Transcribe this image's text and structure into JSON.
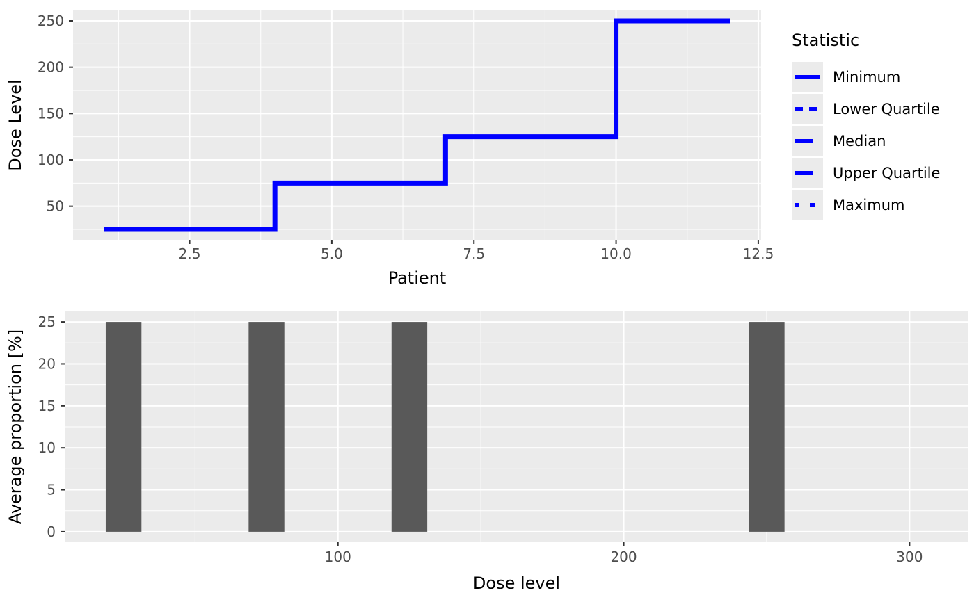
{
  "figure": {
    "background": "#FFFFFF",
    "panel_background": "#EBEBEB",
    "grid_color": "#FFFFFF",
    "tick_color": "#333333",
    "tick_label_color": "#4D4D4D",
    "axis_title_color": "#000000"
  },
  "chart_data": [
    {
      "type": "line",
      "subtype": "step",
      "title": "",
      "xlabel": "Patient",
      "ylabel": "Dose Level",
      "line_color": "#0000FF",
      "line_width": 7,
      "step_points": [
        {
          "x": 1,
          "y": 25
        },
        {
          "x": 4,
          "y": 25
        },
        {
          "x": 4,
          "y": 75
        },
        {
          "x": 7,
          "y": 75
        },
        {
          "x": 7,
          "y": 125
        },
        {
          "x": 10,
          "y": 125
        },
        {
          "x": 10,
          "y": 250
        },
        {
          "x": 12,
          "y": 250
        }
      ],
      "series_note": "Minimum, Lower Quartile, Median, Upper Quartile and Maximum all coincide on the same step curve",
      "xlim": [
        0.45,
        12.55
      ],
      "ylim": [
        13.75,
        261.25
      ],
      "x_ticks": [
        {
          "value": 2.5,
          "label": "2.5"
        },
        {
          "value": 5.0,
          "label": "5.0"
        },
        {
          "value": 7.5,
          "label": "7.5"
        },
        {
          "value": 10.0,
          "label": "10.0"
        },
        {
          "value": 12.5,
          "label": "12.5"
        }
      ],
      "x_minor": [
        1.25,
        3.75,
        6.25,
        8.75,
        11.25
      ],
      "y_ticks": [
        {
          "value": 50,
          "label": "50"
        },
        {
          "value": 100,
          "label": "100"
        },
        {
          "value": 150,
          "label": "150"
        },
        {
          "value": 200,
          "label": "200"
        },
        {
          "value": 250,
          "label": "250"
        }
      ],
      "y_minor": [
        25,
        75,
        125,
        175,
        225
      ],
      "grid": true,
      "legend": {
        "position": "right",
        "title": "Statistic",
        "key_background": "#EBEBEB",
        "entries": [
          {
            "label": "Minimum",
            "linetype": "solid",
            "dash": ""
          },
          {
            "label": "Lower Quartile",
            "linetype": "dashed",
            "dash": "12 9"
          },
          {
            "label": "Median",
            "linetype": "longdash",
            "dash": "27 13"
          },
          {
            "label": "Upper Quartile",
            "linetype": "longdash",
            "dash": "27 13"
          },
          {
            "label": "Maximum",
            "linetype": "dotted",
            "dash": "7 15"
          }
        ]
      }
    },
    {
      "type": "bar",
      "title": "",
      "xlabel": "Dose level",
      "ylabel": "Average proportion [%]",
      "bar_color": "#595959",
      "categories": [
        25,
        75,
        125,
        250
      ],
      "values": [
        25,
        25,
        25,
        25
      ],
      "bar_width": 12.5,
      "xlim": [
        4.4,
        320.6
      ],
      "ylim": [
        -1.25,
        26.25
      ],
      "x_ticks": [
        {
          "value": 100,
          "label": "100"
        },
        {
          "value": 200,
          "label": "200"
        },
        {
          "value": 300,
          "label": "300"
        }
      ],
      "x_minor": [
        50,
        150,
        250
      ],
      "y_ticks": [
        {
          "value": 0,
          "label": "0"
        },
        {
          "value": 5,
          "label": "5"
        },
        {
          "value": 10,
          "label": "10"
        },
        {
          "value": 15,
          "label": "15"
        },
        {
          "value": 20,
          "label": "20"
        },
        {
          "value": 25,
          "label": "25"
        }
      ],
      "y_minor": [
        2.5,
        7.5,
        12.5,
        17.5,
        22.5
      ],
      "grid": true,
      "legend": null
    }
  ]
}
